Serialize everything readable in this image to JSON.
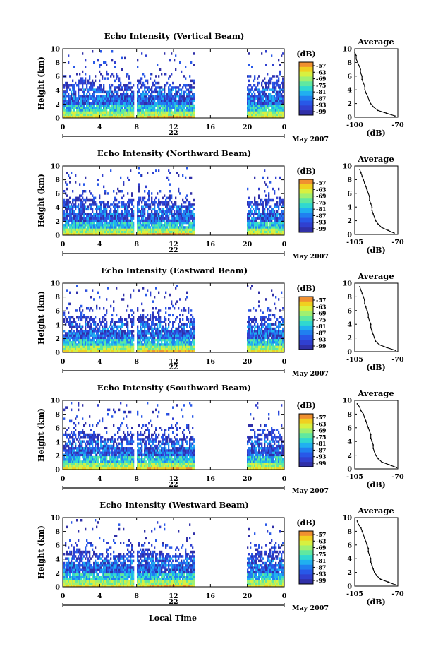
{
  "figure": {
    "shared_y_label": "Height (km)",
    "shared_x_label": "Local Time",
    "date_label": "May 2007",
    "colorbar_unit": "(dB)",
    "colorbar_ticks": [
      "-57",
      "-63",
      "-69",
      "-75",
      "-81",
      "-87",
      "-93",
      "-99"
    ],
    "colorbar_colors": [
      "#f09030",
      "#f0d020",
      "#d8f040",
      "#a0f070",
      "#60e8a0",
      "#30d8d0",
      "#20b0f0",
      "#2080f0",
      "#2858e8",
      "#3040d0",
      "#3030a8"
    ],
    "average_title": "Average",
    "average_xlabel": "(dB)",
    "hour_ticks": [
      "0",
      "4",
      "8",
      "12",
      "16",
      "20",
      "0"
    ],
    "height_ticks": [
      "0",
      "2",
      "4",
      "6",
      "8",
      "10"
    ]
  },
  "chart_data": [
    {
      "type": "heatmap",
      "title": "Echo Intensity (Vertical Beam)",
      "date_tick": "22",
      "x": {
        "label": "Local Time",
        "range_hours": [
          0,
          24
        ]
      },
      "y": {
        "label": "Height (km)",
        "range": [
          0,
          10
        ]
      },
      "colorbar_range_db": [
        -99,
        -57
      ],
      "data_gaps_hours": [
        [
          7.7,
          7.9
        ],
        [
          14.2,
          19.8
        ]
      ],
      "average_profile": {
        "title": "Average",
        "xlabel": "(dB)",
        "xticks": [
          "-100",
          "-70"
        ],
        "xlim": [
          -100,
          -70
        ],
        "height": [
          0.2,
          0.6,
          1.0,
          1.5,
          2.0,
          2.5,
          3.0,
          3.5,
          4.0,
          4.5,
          5.0,
          5.5,
          6.0,
          6.5,
          7.0,
          7.5,
          8.0,
          8.5,
          9.0,
          9.5
        ],
        "db": [
          -72,
          -78,
          -84,
          -87,
          -89,
          -90,
          -91,
          -92,
          -93,
          -93,
          -94,
          -95,
          -95,
          -96,
          -96,
          -97,
          -98,
          -99,
          -99,
          -100
        ]
      }
    },
    {
      "type": "heatmap",
      "title": "Echo Intensity (Northward Beam)",
      "date_tick": "22",
      "x": {
        "label": "Local Time",
        "range_hours": [
          0,
          24
        ]
      },
      "y": {
        "label": "Height (km)",
        "range": [
          0,
          10
        ]
      },
      "colorbar_range_db": [
        -99,
        -57
      ],
      "data_gaps_hours": [
        [
          7.7,
          7.9
        ],
        [
          14.2,
          19.8
        ]
      ],
      "average_profile": {
        "title": "Average",
        "xlabel": "(dB)",
        "xticks": [
          "-105",
          "-70"
        ],
        "xlim": [
          -105,
          -70
        ],
        "height": [
          0.2,
          0.6,
          1.0,
          1.5,
          2.0,
          2.5,
          3.0,
          3.5,
          4.0,
          4.5,
          5.0,
          5.5,
          6.0,
          6.5,
          7.0,
          7.5,
          8.0,
          8.5,
          9.0,
          9.5
        ],
        "db": [
          -73,
          -78,
          -83,
          -86,
          -88,
          -89,
          -90,
          -91,
          -91,
          -92,
          -93,
          -93,
          -94,
          -95,
          -96,
          -97,
          -98,
          -99,
          -100,
          -101
        ]
      }
    },
    {
      "type": "heatmap",
      "title": "Echo Intensity (Eastward Beam)",
      "date_tick": "22",
      "x": {
        "label": "Local Time",
        "range_hours": [
          0,
          24
        ]
      },
      "y": {
        "label": "Height (km)",
        "range": [
          0,
          10
        ]
      },
      "colorbar_range_db": [
        -99,
        -57
      ],
      "data_gaps_hours": [
        [
          7.7,
          7.9
        ],
        [
          14.2,
          19.8
        ]
      ],
      "average_profile": {
        "title": "Average",
        "xlabel": "(dB)",
        "xticks": [
          "-105",
          "-70"
        ],
        "xlim": [
          -105,
          -70
        ],
        "height": [
          0.2,
          0.6,
          1.0,
          1.5,
          2.0,
          2.5,
          3.0,
          3.5,
          4.0,
          4.5,
          5.0,
          5.5,
          6.0,
          6.5,
          7.0,
          7.5,
          8.0,
          8.5,
          9.0,
          9.5
        ],
        "db": [
          -72,
          -79,
          -85,
          -88,
          -89,
          -90,
          -91,
          -92,
          -92,
          -93,
          -94,
          -94,
          -95,
          -96,
          -97,
          -97,
          -98,
          -99,
          -100,
          -101
        ]
      }
    },
    {
      "type": "heatmap",
      "title": "Echo Intensity (Southward Beam)",
      "date_tick": "22",
      "x": {
        "label": "Local Time",
        "range_hours": [
          0,
          24
        ]
      },
      "y": {
        "label": "Height (km)",
        "range": [
          0,
          10
        ]
      },
      "colorbar_range_db": [
        -99,
        -57
      ],
      "data_gaps_hours": [
        [
          7.7,
          7.9
        ],
        [
          14.2,
          19.8
        ]
      ],
      "average_profile": {
        "title": "Average",
        "xlabel": "(dB)",
        "xticks": [
          "-105",
          "-70"
        ],
        "xlim": [
          -105,
          -70
        ],
        "height": [
          0.2,
          0.6,
          1.0,
          1.5,
          2.0,
          2.5,
          3.0,
          3.5,
          4.0,
          4.5,
          5.0,
          5.5,
          6.0,
          6.5,
          7.0,
          7.5,
          8.0,
          8.5,
          9.0,
          9.5
        ],
        "db": [
          -71,
          -77,
          -83,
          -86,
          -88,
          -89,
          -90,
          -90,
          -91,
          -92,
          -92,
          -93,
          -94,
          -95,
          -96,
          -97,
          -98,
          -100,
          -101,
          -103
        ]
      }
    },
    {
      "type": "heatmap",
      "title": "Echo Intensity (Westward Beam)",
      "date_tick": "22",
      "x": {
        "label": "Local Time",
        "range_hours": [
          0,
          24
        ]
      },
      "y": {
        "label": "Height (km)",
        "range": [
          0,
          10
        ]
      },
      "colorbar_range_db": [
        -99,
        -57
      ],
      "data_gaps_hours": [
        [
          7.7,
          7.9
        ],
        [
          14.2,
          19.8
        ]
      ],
      "average_profile": {
        "title": "Average",
        "xlabel": "(dB)",
        "xticks": [
          "-105",
          "-70"
        ],
        "xlim": [
          -105,
          -70
        ],
        "height": [
          0.2,
          0.6,
          1.0,
          1.5,
          2.0,
          2.5,
          3.0,
          3.5,
          4.0,
          4.5,
          5.0,
          5.5,
          6.0,
          6.5,
          7.0,
          7.5,
          8.0,
          8.5,
          9.0,
          9.5
        ],
        "db": [
          -72,
          -78,
          -84,
          -87,
          -89,
          -90,
          -91,
          -92,
          -92,
          -93,
          -94,
          -94,
          -95,
          -96,
          -97,
          -98,
          -99,
          -100,
          -102,
          -103
        ]
      }
    }
  ]
}
